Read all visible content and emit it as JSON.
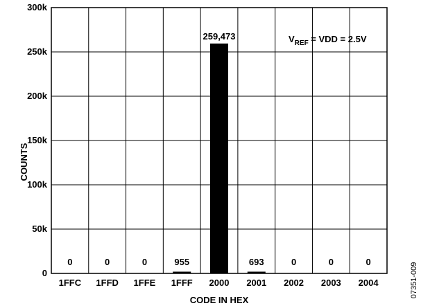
{
  "chart_data": {
    "type": "bar",
    "categories": [
      "1FFC",
      "1FFD",
      "1FFE",
      "1FFF",
      "2000",
      "2001",
      "2002",
      "2003",
      "2004"
    ],
    "values": [
      0,
      0,
      0,
      955,
      259473,
      693,
      0,
      0,
      0
    ],
    "data_labels": [
      "0",
      "0",
      "0",
      "955",
      "259,473",
      "693",
      "0",
      "0",
      "0"
    ],
    "xlabel": "CODE IN HEX",
    "ylabel": "COUNTS",
    "ylim": [
      0,
      300000
    ],
    "yticks": [
      0,
      50000,
      100000,
      150000,
      200000,
      250000,
      300000
    ],
    "ytick_labels": [
      "0",
      "50k",
      "100k",
      "150k",
      "200k",
      "250k",
      "300k"
    ],
    "grid": true,
    "bar_color": "#000000",
    "annotation": {
      "prefix": "V",
      "subscript": "REF",
      "suffix": " = VDD = 2.5V",
      "placement": "top-right"
    },
    "figure_id": "07351-009"
  }
}
